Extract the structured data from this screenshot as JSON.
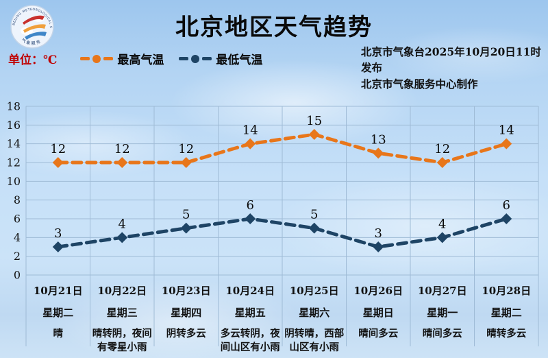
{
  "header": {
    "title": "北京地区天气趋势",
    "unit_label": "单位：℃",
    "publisher_line1": "北京市气象台2025年10月20日11时发布",
    "publisher_line2": "北京市气象服务中心制作",
    "logo": {
      "arc_text_top": "BEIJING METEOROLOGICAL SERVICE",
      "arc_text_bottom": "气象服务"
    }
  },
  "colors": {
    "max_temp": "#E8761A",
    "min_temp": "#1E4465",
    "grid": "#9FBBD6",
    "unit_text": "#C00000"
  },
  "legend": [
    {
      "label": "最高气温",
      "color": "#E8761A"
    },
    {
      "label": "最低气温",
      "color": "#1E4465"
    }
  ],
  "chart_data": {
    "type": "line",
    "title": "北京地区天气趋势",
    "ylabel": "℃",
    "ylim": [
      0,
      18
    ],
    "ytick_step": 2,
    "grid": true,
    "legend_position": "top",
    "line_style": "dashed",
    "marker": "diamond",
    "categories": [
      "10月21日",
      "10月22日",
      "10月23日",
      "10月24日",
      "10月25日",
      "10月26日",
      "10月27日",
      "10月28日"
    ],
    "weekdays": [
      "星期二",
      "星期三",
      "星期四",
      "星期五",
      "星期六",
      "星期日",
      "星期一",
      "星期二"
    ],
    "weather": [
      "晴",
      "晴转阴，夜间有零星小雨",
      "阴转多云",
      "多云转阴，夜间山区有小雨",
      "阴转晴，西部山区有小雨",
      "晴间多云",
      "晴间多云",
      "晴转多云"
    ],
    "series": [
      {
        "name": "最高气温",
        "color": "#E8761A",
        "values": [
          12,
          12,
          12,
          14,
          15,
          13,
          12,
          14
        ]
      },
      {
        "name": "最低气温",
        "color": "#1E4465",
        "values": [
          3,
          4,
          5,
          6,
          5,
          3,
          4,
          6
        ]
      }
    ]
  }
}
